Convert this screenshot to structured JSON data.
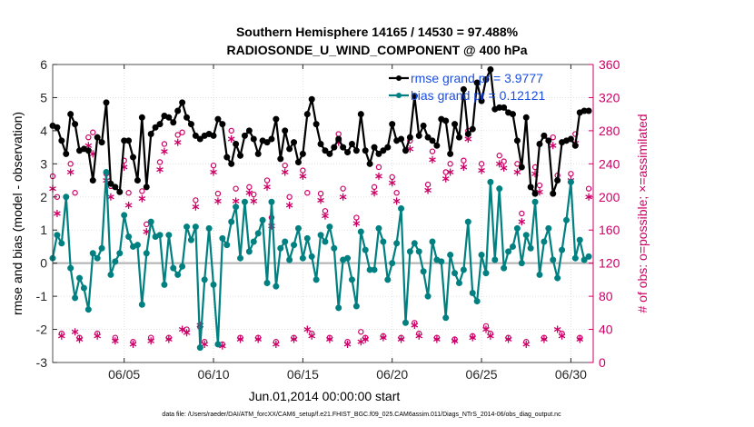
{
  "chart_data": {
    "type": "line",
    "title": "Southern Hemisphere 14165 / 14530 = 97.488%",
    "subtitle": "RADIOSONDE_U_WIND_COMPONENT @ 400 hPa",
    "xlabel": "Jun.01,2014 00:00:00 start",
    "ylabel_left": "rmse and bias (model - observation)",
    "ylabel_right": "# of obs: o=possible; ×=assimilated",
    "footer": "data file: /Users/raeder/DAI/ATM_forcXX/CAM6_setup/f.e21.FHIST_BGC.f09_025.CAM6assim.011/Diags_NTrS_2014-06/obs_diag_output.nc",
    "xlim": [
      1,
      31.25
    ],
    "ylim_left": [
      -3,
      6
    ],
    "ylim_right": [
      0,
      360
    ],
    "x_ticks": [
      5,
      10,
      15,
      20,
      25,
      30
    ],
    "x_tick_labels": [
      "06/05",
      "06/10",
      "06/15",
      "06/20",
      "06/25",
      "06/30"
    ],
    "y_ticks_left": [
      -3,
      -2,
      -1,
      0,
      1,
      2,
      3,
      4,
      5,
      6
    ],
    "y_tick_labels_left": [
      "-3",
      "-2",
      "-1",
      "0",
      "1",
      "2",
      "3",
      "4",
      "5",
      "6"
    ],
    "y_ticks_right": [
      0,
      40,
      80,
      120,
      160,
      200,
      240,
      280,
      320,
      360
    ],
    "y_tick_labels_right": [
      "0",
      "40",
      "80",
      "120",
      "160",
      "200",
      "240",
      "280",
      "320",
      "360"
    ],
    "zero_line": 0,
    "series": [
      {
        "name": "rmse grand pr = 3.9777",
        "axis": "left",
        "color": "#000000",
        "marker": "circle-filled",
        "x": [
          1.0,
          1.25,
          1.5,
          1.75,
          2.0,
          2.25,
          2.5,
          2.75,
          3.0,
          3.25,
          3.5,
          3.75,
          4.0,
          4.25,
          4.5,
          4.75,
          5.0,
          5.25,
          5.5,
          5.75,
          6.0,
          6.25,
          6.5,
          6.75,
          7.0,
          7.25,
          7.5,
          7.75,
          8.0,
          8.25,
          8.5,
          8.75,
          9.0,
          9.25,
          9.5,
          9.75,
          10.0,
          10.25,
          10.5,
          10.75,
          11.0,
          11.25,
          11.5,
          11.75,
          12.0,
          12.25,
          12.5,
          12.75,
          13.0,
          13.25,
          13.5,
          13.75,
          14.0,
          14.25,
          14.5,
          14.75,
          15.0,
          15.25,
          15.5,
          15.75,
          16.0,
          16.25,
          16.5,
          16.75,
          17.0,
          17.25,
          17.5,
          17.75,
          18.0,
          18.25,
          18.5,
          18.75,
          19.0,
          19.25,
          19.5,
          19.75,
          20.0,
          20.25,
          20.5,
          20.75,
          21.0,
          21.25,
          21.5,
          21.75,
          22.0,
          22.25,
          22.5,
          22.75,
          23.0,
          23.25,
          23.5,
          23.75,
          24.0,
          24.25,
          24.5,
          24.75,
          25.0,
          25.25,
          25.5,
          25.75,
          26.0,
          26.25,
          26.5,
          26.75,
          27.0,
          27.25,
          27.5,
          27.75,
          28.0,
          28.25,
          28.5,
          28.75,
          29.0,
          29.25,
          29.5,
          29.75,
          30.0,
          30.25,
          30.5,
          30.75,
          31.0
        ],
        "values": [
          4.15,
          4.1,
          3.7,
          3.3,
          4.5,
          4.2,
          3.4,
          3.45,
          3.4,
          2.5,
          3.8,
          3.65,
          4.85,
          2.4,
          2.3,
          2.15,
          3.7,
          3.7,
          3.2,
          2.5,
          4.4,
          2.3,
          3.9,
          4.1,
          4.2,
          4.45,
          4.4,
          4.25,
          4.6,
          4.85,
          4.4,
          4.2,
          3.85,
          3.75,
          3.85,
          3.9,
          3.85,
          4.35,
          4.2,
          3.2,
          3.0,
          3.6,
          3.25,
          3.85,
          4.0,
          3.75,
          3.3,
          3.7,
          3.65,
          3.75,
          4.35,
          3.15,
          4.0,
          3.45,
          3.65,
          3.05,
          3.3,
          4.5,
          4.95,
          4.2,
          3.6,
          3.4,
          3.3,
          3.5,
          3.75,
          3.5,
          3.35,
          3.6,
          3.4,
          4.5,
          3.4,
          3.0,
          3.5,
          3.3,
          3.4,
          3.5,
          4.2,
          3.7,
          3.75,
          3.4,
          3.8,
          5.05,
          3.85,
          4.15,
          3.8,
          3.7,
          3.55,
          4.35,
          4.3,
          3.3,
          4.2,
          3.8,
          5.25,
          3.9,
          4.05,
          5.45,
          4.9,
          5.55,
          5.85,
          4.65,
          4.7,
          4.7,
          4.55,
          4.5,
          3.7,
          2.9,
          4.4,
          2.3,
          2.1,
          3.6,
          3.85,
          3.7,
          2.1,
          2.5,
          3.65,
          3.7,
          3.75,
          3.55,
          4.55,
          4.6,
          4.6
        ]
      },
      {
        "name": "bias grand pr = 0.12121",
        "axis": "left",
        "color": "#008080",
        "marker": "circle-filled",
        "x": [
          1.0,
          1.25,
          1.5,
          1.75,
          2.0,
          2.25,
          2.5,
          2.75,
          3.0,
          3.25,
          3.5,
          3.75,
          4.0,
          4.25,
          4.5,
          4.75,
          5.0,
          5.25,
          5.5,
          5.75,
          6.0,
          6.25,
          6.5,
          6.75,
          7.0,
          7.25,
          7.5,
          7.75,
          8.0,
          8.25,
          8.5,
          8.75,
          9.0,
          9.25,
          9.5,
          9.75,
          10.0,
          10.25,
          10.5,
          10.75,
          11.0,
          11.25,
          11.5,
          11.75,
          12.0,
          12.25,
          12.5,
          12.75,
          13.0,
          13.25,
          13.5,
          13.75,
          14.0,
          14.25,
          14.5,
          14.75,
          15.0,
          15.25,
          15.5,
          15.75,
          16.0,
          16.25,
          16.5,
          16.75,
          17.0,
          17.25,
          17.5,
          17.75,
          18.0,
          18.25,
          18.5,
          18.75,
          19.0,
          19.25,
          19.5,
          19.75,
          20.0,
          20.25,
          20.5,
          20.75,
          21.0,
          21.25,
          21.5,
          21.75,
          22.0,
          22.25,
          22.5,
          22.75,
          23.0,
          23.25,
          23.5,
          23.75,
          24.0,
          24.25,
          24.5,
          24.75,
          25.0,
          25.25,
          25.5,
          25.75,
          26.0,
          26.25,
          26.5,
          26.75,
          27.0,
          27.25,
          27.5,
          27.75,
          28.0,
          28.25,
          28.5,
          28.75,
          29.0,
          29.25,
          29.5,
          29.75,
          30.0,
          30.25,
          30.5,
          30.75,
          31.0
        ],
        "values": [
          0.15,
          0.85,
          0.6,
          2.0,
          -0.15,
          -1.05,
          -0.45,
          -0.75,
          -1.4,
          0.3,
          0.15,
          0.45,
          2.75,
          -0.35,
          0.05,
          0.3,
          1.45,
          0.8,
          0.5,
          0.55,
          -1.25,
          0.3,
          1.25,
          0.8,
          0.85,
          -0.65,
          0.85,
          -0.15,
          -0.35,
          -0.1,
          1.1,
          0.7,
          1.1,
          -2.55,
          -0.5,
          1.05,
          -0.65,
          -2.45,
          0.75,
          0.55,
          1.25,
          1.7,
          0.15,
          1.85,
          0.35,
          0.65,
          0.9,
          1.3,
          -0.6,
          1.85,
          -0.7,
          0.45,
          0.65,
          0.1,
          0.55,
          1.05,
          0.15,
          0.75,
          0.2,
          -0.5,
          0.85,
          0.65,
          1.1,
          0.45,
          -1.35,
          0.1,
          0.15,
          -0.5,
          -1.3,
          0.95,
          0.4,
          -0.2,
          -0.2,
          1.05,
          0.65,
          -0.5,
          0.0,
          0.6,
          1.65,
          -1.8,
          0.35,
          0.6,
          0.35,
          -0.25,
          -1.0,
          0.65,
          0.1,
          0.05,
          -1.65,
          0.25,
          -0.3,
          -0.6,
          -0.2,
          1.25,
          -0.9,
          -1.15,
          0.25,
          -0.3,
          2.45,
          0.1,
          2.25,
          -0.15,
          0.35,
          0.5,
          1.05,
          0.0,
          0.85,
          0.45,
          1.85,
          -0.35,
          0.65,
          1.05,
          0.1,
          -0.45,
          0.4,
          1.3,
          2.45,
          0.15,
          0.7,
          0.1,
          0.2
        ]
      },
      {
        "name": "obs possible",
        "axis": "right",
        "color": "#cc0066",
        "marker": "circle-open",
        "x": [
          1.0,
          1.5,
          2.0,
          2.5,
          3.0,
          3.5,
          4.0,
          4.5,
          5.0,
          5.5,
          6.0,
          6.5,
          7.0,
          7.5,
          8.0,
          8.5,
          9.0,
          9.5,
          10.0,
          10.5,
          11.0,
          11.5,
          12.0,
          12.5,
          13.0,
          13.5,
          14.0,
          14.5,
          15.0,
          15.5,
          16.0,
          16.5,
          17.0,
          17.5,
          18.0,
          18.5,
          19.0,
          19.5,
          20.0,
          20.5,
          21.0,
          21.5,
          22.0,
          22.5,
          23.0,
          23.5,
          24.0,
          24.5,
          25.0,
          25.5,
          26.0,
          26.5,
          27.0,
          27.5,
          28.0,
          28.5,
          29.0,
          29.5,
          30.0,
          30.5,
          31.0,
          1.25,
          2.25,
          3.25,
          4.25,
          5.25,
          6.25,
          7.25,
          8.25,
          9.25,
          10.25,
          11.25,
          12.25,
          13.25,
          14.25,
          15.25,
          16.25,
          17.25,
          18.25,
          19.25,
          20.25,
          21.25,
          22.25,
          23.25,
          24.25,
          25.25,
          26.25,
          27.25,
          28.25,
          29.25,
          30.25
        ],
        "values": [
          225,
          35,
          240,
          30,
          272,
          35,
          228,
          30,
          244,
          25,
          207,
          30,
          242,
          30,
          275,
          40,
          196,
          25,
          238,
          22,
          280,
          30,
          212,
          30,
          220,
          25,
          238,
          30,
          232,
          35,
          204,
          30,
          276,
          25,
          175,
          30,
          212,
          32,
          224,
          30,
          268,
          35,
          215,
          30,
          230,
          28,
          244,
          32,
          240,
          35,
          250,
          30,
          240,
          25,
          236,
          30,
          272,
          35,
          228,
          30,
          210,
          200,
          205,
          278,
          213,
          205,
          167,
          264,
          278,
          43,
          204,
          210,
          203,
          175,
          200,
          205,
          183,
          210,
          37,
          236,
          205,
          48,
          255,
          240,
          280,
          44,
          243,
          180,
          214,
          226,
          276
        ]
      },
      {
        "name": "obs assimilated",
        "axis": "right",
        "color": "#cc0066",
        "marker": "asterisk",
        "x": [
          1.0,
          1.5,
          2.0,
          2.5,
          3.0,
          3.5,
          4.0,
          4.5,
          5.0,
          5.5,
          6.0,
          6.5,
          7.0,
          7.5,
          8.0,
          8.5,
          9.0,
          9.5,
          10.0,
          10.5,
          11.0,
          11.5,
          12.0,
          12.5,
          13.0,
          13.5,
          14.0,
          14.5,
          15.0,
          15.5,
          16.0,
          16.5,
          17.0,
          17.5,
          18.0,
          18.5,
          19.0,
          19.5,
          20.0,
          20.5,
          21.0,
          21.5,
          22.0,
          22.5,
          23.0,
          23.5,
          24.0,
          24.5,
          25.0,
          25.5,
          26.0,
          26.5,
          27.0,
          27.5,
          28.0,
          28.5,
          29.0,
          29.5,
          30.0,
          30.5,
          31.0,
          1.25,
          2.25,
          3.25,
          4.25,
          5.25,
          6.25,
          7.25,
          8.25,
          9.25,
          10.25,
          11.25,
          12.25,
          13.25,
          14.25,
          15.25,
          16.25,
          17.25,
          18.25,
          19.25,
          20.25,
          21.25,
          22.25,
          23.25,
          24.25,
          25.25,
          26.25,
          27.25,
          28.25,
          29.25,
          30.25
        ],
        "values": [
          210,
          32,
          230,
          28,
          262,
          32,
          220,
          26,
          236,
          22,
          198,
          26,
          233,
          28,
          266,
          36,
          188,
          22,
          230,
          20,
          270,
          28,
          205,
          28,
          212,
          22,
          230,
          28,
          225,
          32,
          196,
          28,
          266,
          22,
          168,
          28,
          205,
          30,
          217,
          28,
          258,
          32,
          208,
          28,
          222,
          26,
          236,
          30,
          232,
          32,
          240,
          28,
          230,
          22,
          228,
          28,
          262,
          32,
          220,
          28,
          200,
          180,
          37,
          252,
          200,
          190,
          158,
          255,
          40,
          45,
          195,
          195,
          195,
          165,
          190,
          40,
          177,
          200,
          25,
          225,
          195,
          45,
          245,
          230,
          270,
          40,
          235,
          170,
          206,
          40,
          265
        ]
      }
    ],
    "legend": {
      "placement": "top-right",
      "entries": [
        "rmse grand pr = 3.9777",
        "bias grand pr = 0.12121"
      ]
    },
    "colors": {
      "rmse": "#000000",
      "bias": "#008080",
      "obs": "#cc0066",
      "right_axis": "#cc0066",
      "legend_text": "#1b4fe0",
      "zero_line": "#b0b0b0"
    }
  }
}
